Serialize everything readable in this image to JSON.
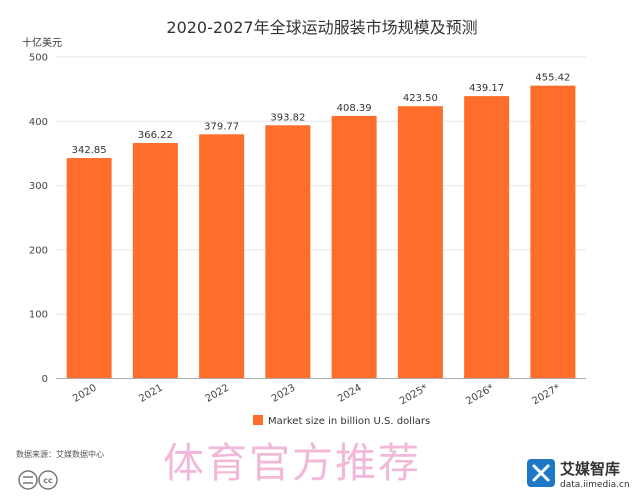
{
  "chart_data": {
    "type": "bar",
    "title": "2020-2027年全球运动服装市场规模及预测",
    "ylabel": "十亿美元",
    "xlabel": "",
    "categories": [
      "2020",
      "2021",
      "2022",
      "2023",
      "2024",
      "2025*",
      "2026*",
      "2027*"
    ],
    "series": [
      {
        "name": "Market size in billion U.S. dollars",
        "values": [
          342.85,
          366.22,
          379.77,
          393.82,
          408.39,
          423.5,
          439.17,
          455.42
        ]
      }
    ],
    "value_labels": [
      "342.85",
      "366.22",
      "379.77",
      "393.82",
      "408.39",
      "423.50",
      "439.17",
      "455.42"
    ],
    "yticks": [
      "0",
      "100",
      "200",
      "300",
      "400",
      "500"
    ],
    "ytick_values": [
      0,
      100,
      200,
      300,
      400,
      500
    ],
    "ylim": [
      0,
      500
    ],
    "grid": true,
    "legend_position": "bottom",
    "bar_color": "#ff6d2b"
  },
  "footer": {
    "source": "数据来源：艾媒数据中心",
    "watermark": "体育官方推荐",
    "brand_name": "艾媒智库",
    "brand_url": "data.iimedia.cn",
    "brand_color": "#1e78c8"
  }
}
